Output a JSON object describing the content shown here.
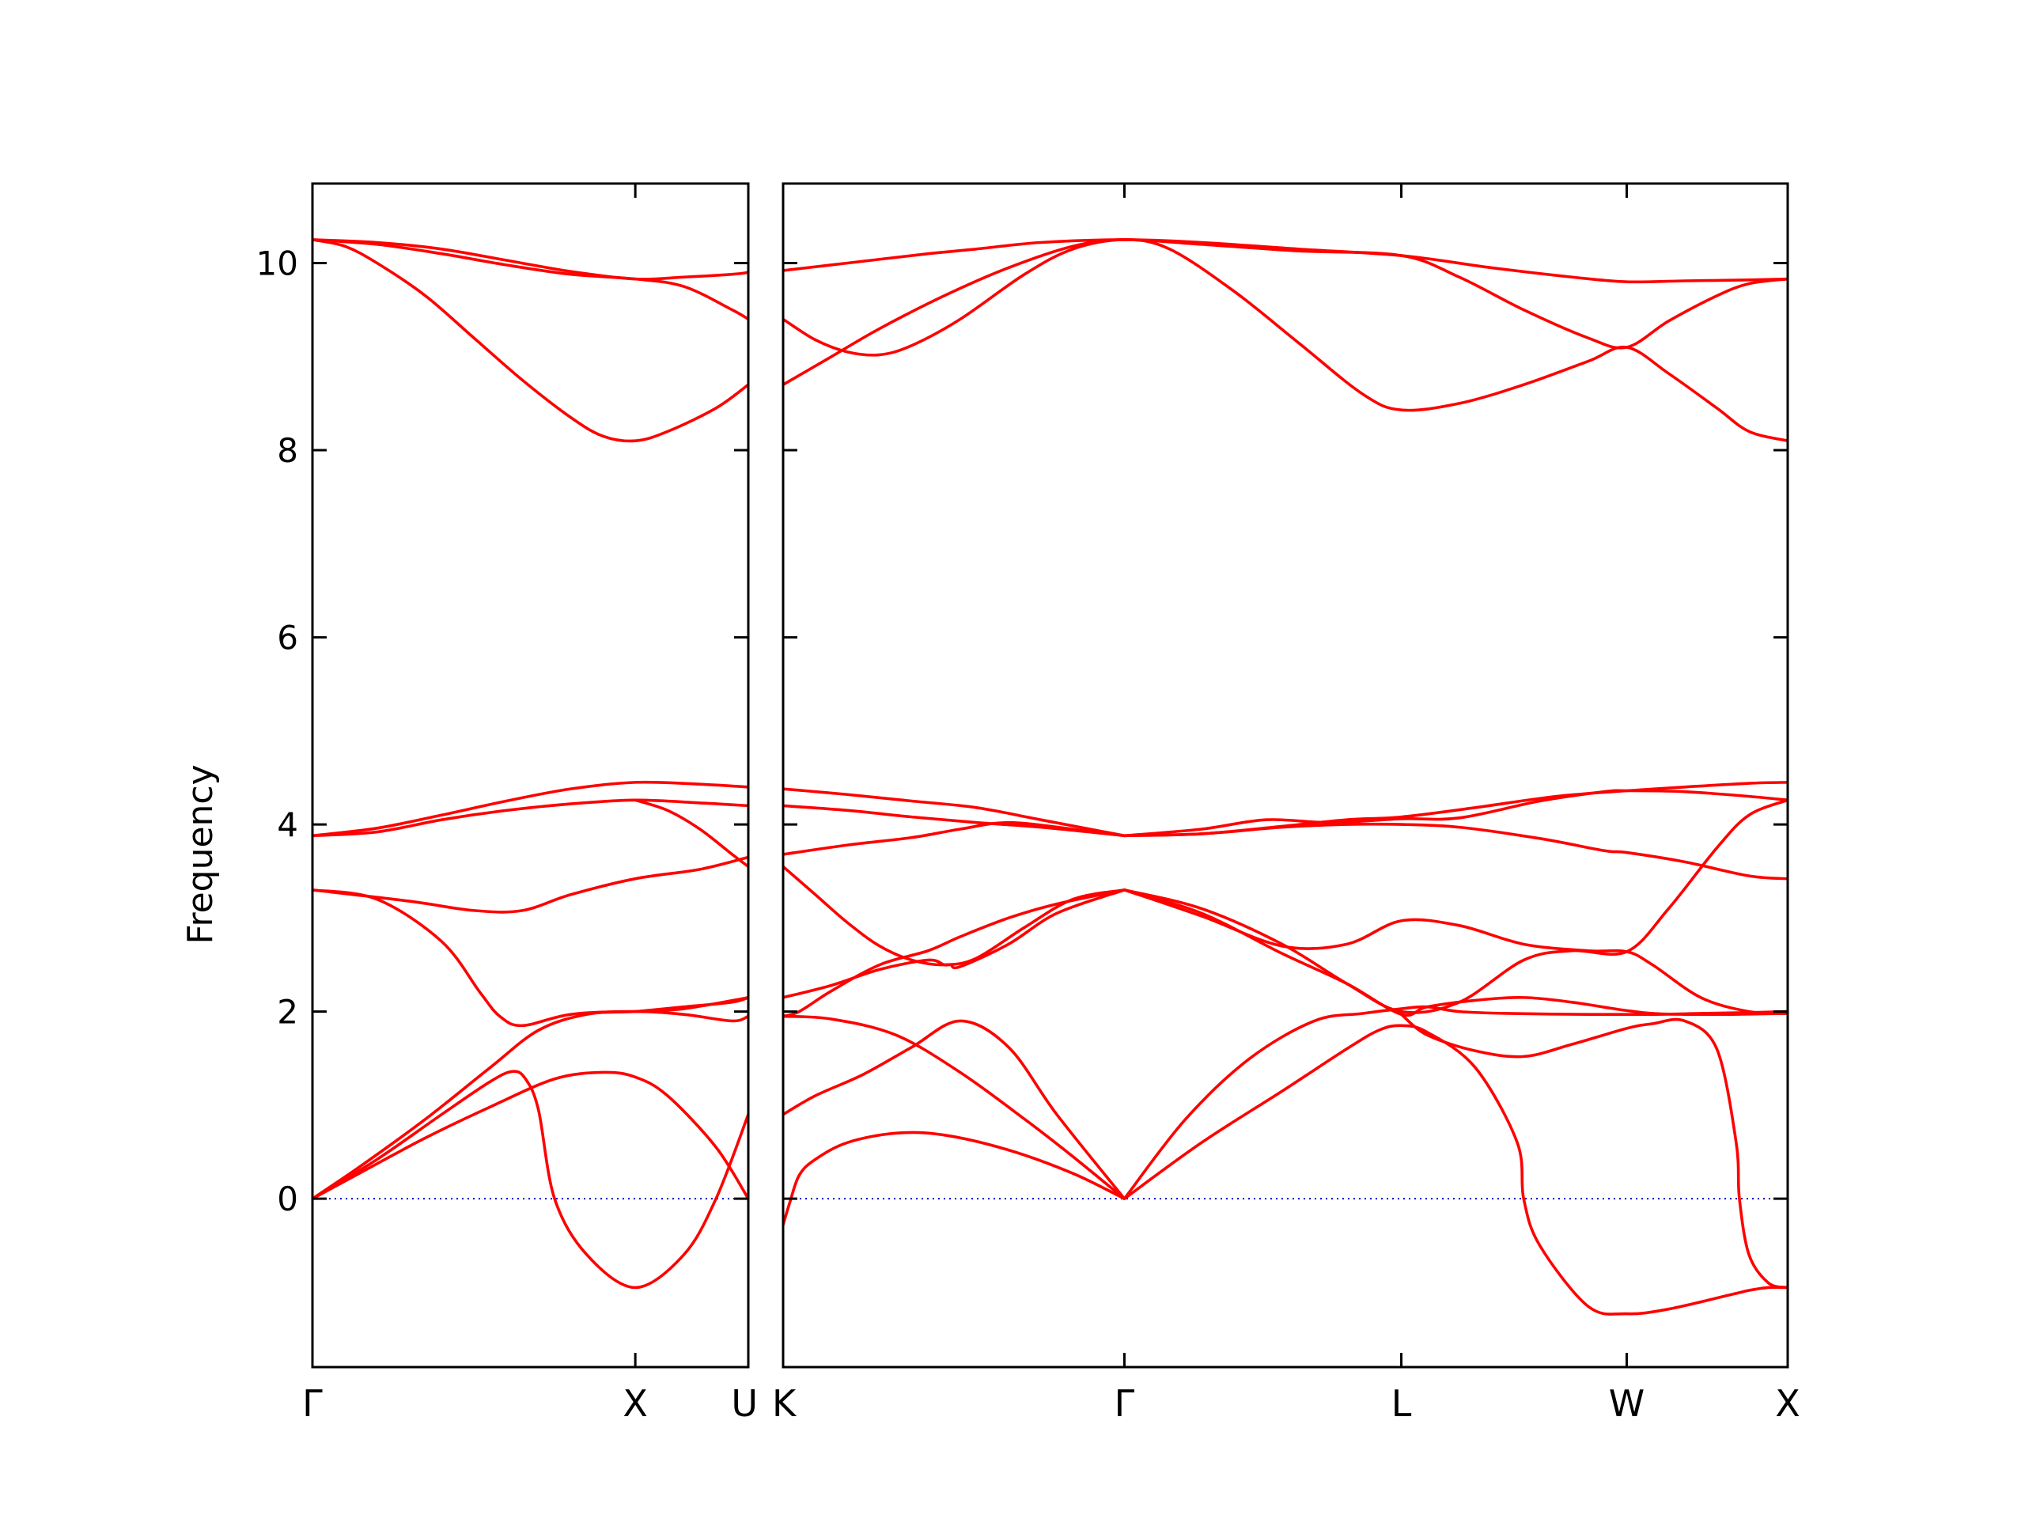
{
  "chart_data": {
    "type": "line",
    "title": "",
    "xlabel": "",
    "ylabel": "Frequency",
    "ylim": [
      -1.8,
      10.85
    ],
    "yticks": [
      0,
      2,
      4,
      6,
      8,
      10
    ],
    "grid": false,
    "legend": "none",
    "colors": {
      "band": "#ff0000",
      "zero_line": "#0000cc",
      "axes": "#000000"
    },
    "panels": [
      {
        "name": "gamma-x-u",
        "xrange": [
          0,
          1.35
        ],
        "ticks": [
          {
            "pos": 0,
            "label": "Γ"
          },
          {
            "pos": 1,
            "label": "X"
          },
          {
            "pos": 1.35,
            "label": "U"
          }
        ],
        "bands": [
          {
            "x": [
              0,
              0.15,
              0.35,
              0.55,
              0.75,
              0.9,
              1.0,
              1.1,
              1.25,
              1.35
            ],
            "y": [
              0.0,
              0.28,
              0.65,
              0.98,
              1.28,
              1.35,
              1.3,
              1.1,
              0.55,
              0.0
            ]
          },
          {
            "x": [
              0,
              0.2,
              0.4,
              0.55,
              0.62,
              0.66,
              0.7,
              0.75,
              0.85,
              1.0,
              1.15,
              1.25,
              1.35
            ],
            "y": [
              0.0,
              0.42,
              0.9,
              1.25,
              1.36,
              1.28,
              0.95,
              0.0,
              -0.6,
              -0.95,
              -0.6,
              0.0,
              0.9
            ]
          },
          {
            "x": [
              0,
              0.15,
              0.35,
              0.55,
              0.7,
              0.85,
              1.0,
              1.15,
              1.35
            ],
            "y": [
              0.0,
              0.35,
              0.85,
              1.4,
              1.8,
              1.97,
              2.0,
              2.03,
              2.15
            ]
          },
          {
            "x": [
              0,
              0.2,
              0.4,
              0.52,
              0.58,
              0.65,
              0.8,
              1.0,
              1.15,
              1.3,
              1.35
            ],
            "y": [
              3.3,
              3.2,
              2.75,
              2.2,
              1.95,
              1.85,
              1.97,
              2.0,
              1.97,
              1.9,
              1.95
            ]
          },
          {
            "x": [
              0,
              0.3,
              0.5,
              0.65,
              0.8,
              1.0,
              1.2,
              1.35
            ],
            "y": [
              3.3,
              3.18,
              3.08,
              3.08,
              3.25,
              3.42,
              3.52,
              3.65
            ]
          },
          {
            "x": [
              0,
              0.2,
              0.4,
              0.6,
              0.8,
              1.0,
              1.2,
              1.35
            ],
            "y": [
              3.88,
              3.92,
              4.05,
              4.15,
              4.22,
              4.26,
              4.23,
              4.2
            ]
          },
          {
            "x": [
              0,
              0.2,
              0.4,
              0.6,
              0.8,
              1.0,
              1.2,
              1.35
            ],
            "y": [
              3.88,
              3.96,
              4.1,
              4.25,
              4.38,
              4.45,
              4.43,
              4.4
            ]
          },
          {
            "x": [
              0,
              0.1,
              0.2,
              0.35,
              0.5,
              0.65,
              0.8,
              0.9,
              1.0,
              1.1,
              1.25,
              1.35
            ],
            "y": [
              10.25,
              10.18,
              10.0,
              9.65,
              9.2,
              8.75,
              8.35,
              8.15,
              8.1,
              8.2,
              8.45,
              8.7
            ]
          },
          {
            "x": [
              0,
              0.2,
              0.4,
              0.6,
              0.8,
              1.0,
              1.15,
              1.3,
              1.35
            ],
            "y": [
              10.25,
              10.2,
              10.1,
              9.98,
              9.88,
              9.83,
              9.75,
              9.5,
              9.4
            ]
          },
          {
            "x": [
              0,
              0.2,
              0.4,
              0.6,
              0.8,
              1.0,
              1.15,
              1.3,
              1.35
            ],
            "y": [
              10.25,
              10.22,
              10.15,
              10.03,
              9.91,
              9.83,
              9.85,
              9.88,
              9.9
            ]
          },
          {
            "x": [
              1.0,
              1.1,
              1.2,
              1.3,
              1.35
            ],
            "y": [
              4.26,
              4.15,
              3.95,
              3.68,
              3.55
            ]
          },
          {
            "x": [
              1.0,
              1.15,
              1.3,
              1.35
            ],
            "y": [
              2.0,
              2.05,
              2.1,
              2.15
            ]
          }
        ]
      },
      {
        "name": "k-gamma-l-w-x",
        "xrange": [
          0,
          3.12
        ],
        "ticks": [
          {
            "pos": 0,
            "label": "K"
          },
          {
            "pos": 1.06,
            "label": "Γ"
          },
          {
            "pos": 1.92,
            "label": "L"
          },
          {
            "pos": 2.62,
            "label": "W"
          },
          {
            "pos": 3.12,
            "label": "X"
          }
        ],
        "bands": [
          {
            "x": [
              0,
              0.02,
              0.05,
              0.1,
              0.2,
              0.35,
              0.5,
              0.7,
              0.9,
              1.06
            ],
            "y": [
              -0.28,
              -0.05,
              0.25,
              0.42,
              0.6,
              0.7,
              0.68,
              0.52,
              0.27,
              0.0
            ]
          },
          {
            "x": [
              0,
              0.1,
              0.25,
              0.4,
              0.55,
              0.7,
              0.85,
              1.06
            ],
            "y": [
              0.9,
              1.1,
              1.33,
              1.62,
              1.9,
              1.62,
              0.9,
              0.0
            ]
          },
          {
            "x": [
              0,
              0.15,
              0.35,
              0.55,
              0.75,
              0.9,
              1.06
            ],
            "y": [
              1.95,
              1.92,
              1.75,
              1.35,
              0.85,
              0.45,
              0.0
            ]
          },
          {
            "x": [
              1.06,
              1.25,
              1.45,
              1.65,
              1.8,
              1.92,
              2.0,
              2.1,
              2.25,
              2.5,
              2.7,
              2.85,
              3.0,
              3.12
            ],
            "y": [
              0.0,
              0.85,
              1.5,
              1.9,
              1.98,
              2.03,
              2.05,
              2.0,
              1.98,
              1.97,
              1.97,
              1.98,
              1.99,
              2.0
            ]
          },
          {
            "x": [
              1.06,
              1.3,
              1.55,
              1.75,
              1.85,
              1.92,
              2.0,
              2.15,
              2.28,
              2.3,
              2.35,
              2.5,
              2.62,
              2.75,
              2.95,
              3.0,
              3.06,
              3.12
            ],
            "y": [
              0.0,
              0.6,
              1.15,
              1.6,
              1.8,
              1.85,
              1.78,
              1.4,
              0.6,
              0.0,
              -0.5,
              -1.15,
              -1.23,
              -1.18,
              -1.02,
              -0.98,
              -0.95,
              -0.95
            ]
          },
          {
            "x": [
              1.92,
              2.0,
              2.15,
              2.3,
              2.45,
              2.62,
              2.7,
              2.8,
              2.9,
              2.96,
              2.97,
              3.0,
              3.06,
              3.12
            ],
            "y": [
              1.97,
              1.75,
              1.58,
              1.52,
              1.65,
              1.82,
              1.87,
              1.9,
              1.6,
              0.6,
              0.0,
              -0.6,
              -0.9,
              -0.95
            ]
          },
          {
            "x": [
              1.06,
              1.3,
              1.55,
              1.75,
              1.92,
              2.0,
              2.15,
              2.3,
              2.45,
              2.6,
              2.7,
              2.8,
              2.95,
              3.12
            ],
            "y": [
              3.3,
              3.05,
              2.62,
              2.3,
              1.97,
              2.05,
              2.12,
              2.15,
              2.1,
              2.02,
              1.98,
              1.97,
              1.97,
              1.98
            ]
          },
          {
            "x": [
              1.06,
              1.3,
              1.55,
              1.75,
              1.92,
              2.1,
              2.3,
              2.5,
              2.62,
              2.7,
              2.85,
              3.0,
              3.12
            ],
            "y": [
              3.3,
              3.02,
              2.7,
              2.72,
              2.97,
              2.92,
              2.72,
              2.65,
              2.64,
              2.5,
              2.15,
              2.0,
              1.98
            ]
          },
          {
            "x": [
              1.06,
              1.3,
              1.55,
              1.75,
              1.92,
              2.1,
              2.3,
              2.45,
              2.62,
              2.75,
              2.9,
              3.0,
              3.12
            ],
            "y": [
              3.3,
              3.1,
              2.72,
              2.3,
              2.0,
              2.1,
              2.55,
              2.65,
              2.64,
              3.1,
              3.75,
              4.1,
              4.26
            ]
          },
          {
            "x": [
              1.06,
              1.3,
              1.5,
              1.7,
              1.92,
              2.1,
              2.35,
              2.55,
              2.62,
              2.8,
              3.0,
              3.12
            ],
            "y": [
              3.88,
              3.95,
              4.05,
              4.02,
              4.06,
              4.07,
              4.25,
              4.35,
              4.36,
              4.35,
              4.3,
              4.26
            ]
          },
          {
            "x": [
              1.06,
              1.3,
              1.55,
              1.75,
              1.92,
              2.1,
              2.35,
              2.55,
              2.62,
              2.8,
              3.0,
              3.12
            ],
            "y": [
              3.88,
              3.9,
              3.97,
              4.0,
              4.0,
              3.97,
              3.85,
              3.72,
              3.7,
              3.6,
              3.45,
              3.42
            ]
          },
          {
            "x": [
              1.06,
              1.3,
              1.55,
              1.75,
              1.92,
              2.15,
              2.4,
              2.62,
              2.8,
              3.0,
              3.12
            ],
            "y": [
              3.88,
              3.9,
              3.98,
              4.05,
              4.08,
              4.18,
              4.3,
              4.36,
              4.4,
              4.44,
              4.45
            ]
          },
          {
            "x": [
              0,
              0.2,
              0.4,
              0.6,
              0.8,
              1.06
            ],
            "y": [
              4.38,
              4.32,
              4.25,
              4.18,
              4.05,
              3.88
            ]
          },
          {
            "x": [
              0,
              0.2,
              0.4,
              0.6,
              0.8,
              1.06
            ],
            "y": [
              4.2,
              4.15,
              4.08,
              4.02,
              3.97,
              3.88
            ]
          },
          {
            "x": [
              0,
              0.2,
              0.4,
              0.55,
              0.7,
              0.9,
              1.06
            ],
            "y": [
              3.68,
              3.78,
              3.86,
              3.95,
              4.02,
              3.95,
              3.88
            ]
          },
          {
            "x": [
              0,
              0.1,
              0.2,
              0.3,
              0.4,
              0.5,
              0.6,
              0.75,
              0.9,
              1.06
            ],
            "y": [
              3.55,
              3.25,
              2.95,
              2.7,
              2.55,
              2.5,
              2.57,
              2.9,
              3.2,
              3.3
            ]
          },
          {
            "x": [
              0,
              0.15,
              0.3,
              0.45,
              0.5,
              0.52,
              0.55,
              0.7,
              0.85,
              1.06
            ],
            "y": [
              2.15,
              2.28,
              2.45,
              2.55,
              2.5,
              2.5,
              2.48,
              2.72,
              3.05,
              3.3
            ]
          },
          {
            "x": [
              0,
              0.05,
              0.15,
              0.3,
              0.45,
              0.55,
              0.7,
              0.85,
              1.06
            ],
            "y": [
              1.95,
              2.0,
              2.22,
              2.5,
              2.65,
              2.8,
              3.0,
              3.15,
              3.3
            ]
          },
          {
            "x": [
              0,
              0.2,
              0.45,
              0.6,
              0.8,
              1.06,
              1.3,
              1.6,
              1.92,
              2.2,
              2.45,
              2.62,
              2.8,
              3.0,
              3.12
            ],
            "y": [
              9.92,
              10.0,
              10.1,
              10.15,
              10.22,
              10.25,
              10.22,
              10.15,
              10.08,
              9.95,
              9.85,
              9.8,
              9.81,
              9.82,
              9.83
            ]
          },
          {
            "x": [
              0,
              0.1,
              0.2,
              0.3,
              0.4,
              0.55,
              0.75,
              0.9,
              1.06,
              1.2,
              1.4,
              1.6,
              1.8,
              1.92,
              2.1,
              2.3,
              2.5,
              2.62,
              2.75,
              2.9,
              3.0,
              3.12
            ],
            "y": [
              9.4,
              9.18,
              9.05,
              9.02,
              9.12,
              9.4,
              9.88,
              10.15,
              10.25,
              10.15,
              9.7,
              9.15,
              8.6,
              8.43,
              8.5,
              8.7,
              8.95,
              9.1,
              8.82,
              8.45,
              8.2,
              8.1
            ]
          },
          {
            "x": [
              0,
              0.15,
              0.3,
              0.5,
              0.7,
              0.9,
              1.06,
              1.3,
              1.6,
              1.92,
              2.1,
              2.3,
              2.5,
              2.62,
              2.75,
              2.9,
              3.0,
              3.12
            ],
            "y": [
              8.7,
              9.0,
              9.3,
              9.65,
              9.95,
              10.18,
              10.25,
              10.2,
              10.13,
              10.08,
              9.85,
              9.5,
              9.2,
              9.1,
              9.38,
              9.65,
              9.78,
              9.83
            ]
          }
        ]
      }
    ]
  }
}
